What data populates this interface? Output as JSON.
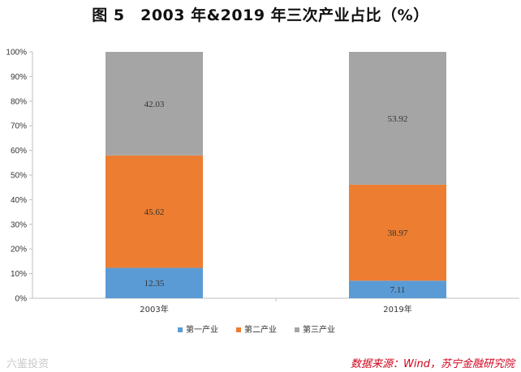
{
  "title": "图 5　2003 年&2019 年三次产业占比（%）",
  "watermark": "六鉴投资",
  "source": "数据来源：Wind，苏宁金融研究院",
  "colors": {
    "primary": "#5b9bd5",
    "secondary": "#ed7d31",
    "tertiary": "#a5a5a5"
  },
  "chart_data": {
    "type": "bar",
    "stacked": true,
    "categories": [
      "2003年",
      "2019年"
    ],
    "series": [
      {
        "name": "第一产业",
        "values": [
          12.35,
          7.11
        ],
        "color": "#5b9bd5"
      },
      {
        "name": "第二产业",
        "values": [
          45.62,
          38.97
        ],
        "color": "#ed7d31"
      },
      {
        "name": "第三产业",
        "values": [
          42.03,
          53.92
        ],
        "color": "#a5a5a5"
      }
    ],
    "y_ticks": [
      "0%",
      "10%",
      "20%",
      "30%",
      "40%",
      "50%",
      "60%",
      "70%",
      "80%",
      "90%",
      "100%"
    ],
    "ylim": [
      0,
      100
    ],
    "legend_position": "bottom",
    "grid": false
  }
}
